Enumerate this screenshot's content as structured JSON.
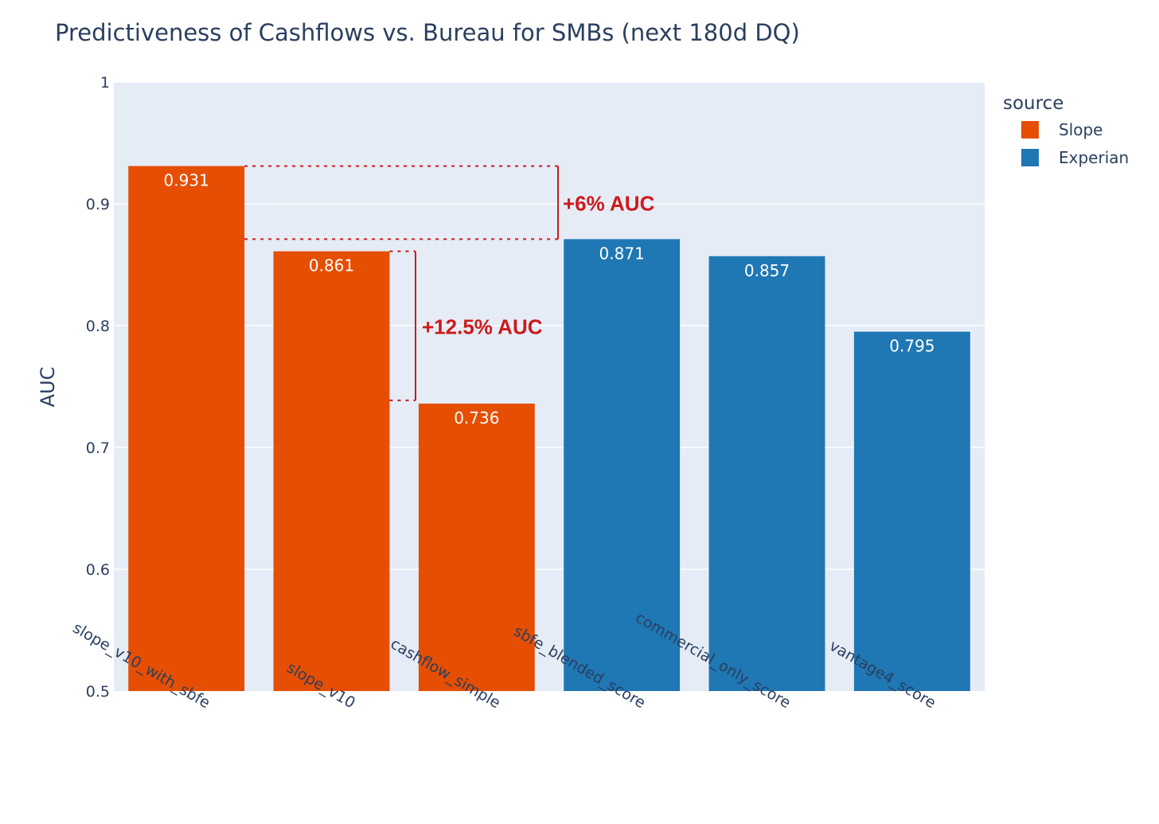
{
  "chart_data": {
    "type": "bar",
    "title": "Predictiveness of Cashflows vs. Bureau for SMBs (next 180d DQ)",
    "xlabel": "",
    "ylabel": "AUC",
    "ylim": [
      0.5,
      1
    ],
    "yticks": [
      0.5,
      0.6,
      0.7,
      0.8,
      0.9,
      1
    ],
    "ytick_labels": [
      "0.5",
      "0.6",
      "0.7",
      "0.8",
      "0.9",
      "1"
    ],
    "grid": true,
    "categories": [
      "slope_v10_with_sbfe",
      "slope_v10",
      "cashflow_simple",
      "sbfe_blended_score",
      "commercial_only_score",
      "vantage4_score"
    ],
    "values": [
      0.931,
      0.861,
      0.736,
      0.871,
      0.857,
      0.795
    ],
    "value_labels": [
      "0.931",
      "0.861",
      "0.736",
      "0.871",
      "0.857",
      "0.795"
    ],
    "sources": [
      "Slope",
      "Slope",
      "Slope",
      "Experian",
      "Experian",
      "Experian"
    ],
    "legend": {
      "title": "source",
      "placement": "top-right",
      "entries": [
        {
          "name": "Slope",
          "color": "#e54e03"
        },
        {
          "name": "Experian",
          "color": "#1f77b4"
        }
      ]
    },
    "annotations": [
      {
        "text": "+6% AUC",
        "from_value": 0.931,
        "to_value": 0.871,
        "color": "#cc1a1a"
      },
      {
        "text": "+12.5% AUC",
        "from_value": 0.861,
        "to_value": 0.736,
        "color": "#cc1a1a"
      }
    ],
    "colors": {
      "plot_bg": "#e5ecf6",
      "grid": "#ffffff",
      "text": "#2a3f5f"
    }
  }
}
